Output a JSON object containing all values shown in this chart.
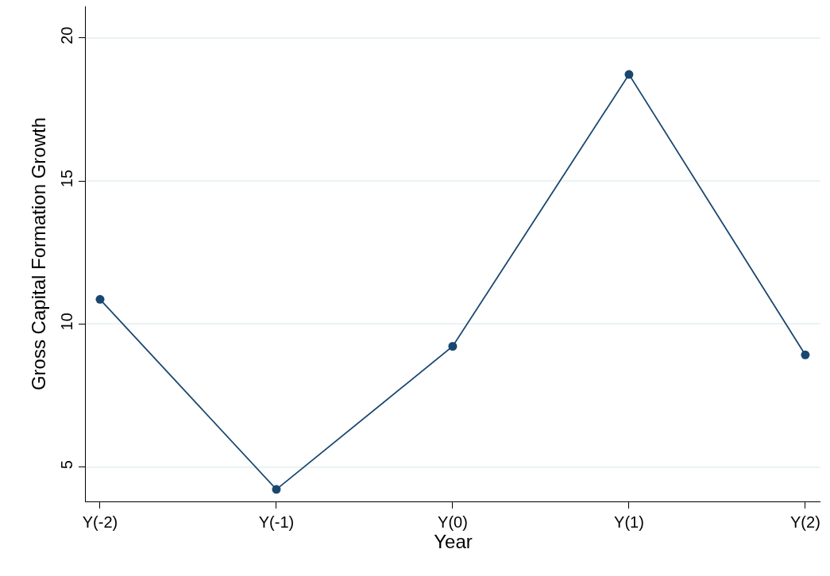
{
  "chart_data": {
    "type": "line",
    "xlabel": "Year",
    "ylabel": "Gross Capital Formation Growth",
    "categories": [
      "Y(-2)",
      "Y(-1)",
      "Y(0)",
      "Y(1)",
      "Y(2)"
    ],
    "series": [
      {
        "color": "#1a476f",
        "values": [
          10.86,
          4.22,
          9.22,
          18.72,
          8.92
        ]
      }
    ],
    "ylim": [
      3.8,
      21.1
    ],
    "yticks": [
      5,
      10,
      15,
      20
    ],
    "grid": "y",
    "legend": false,
    "marker": "circle",
    "line_style": "solid"
  }
}
